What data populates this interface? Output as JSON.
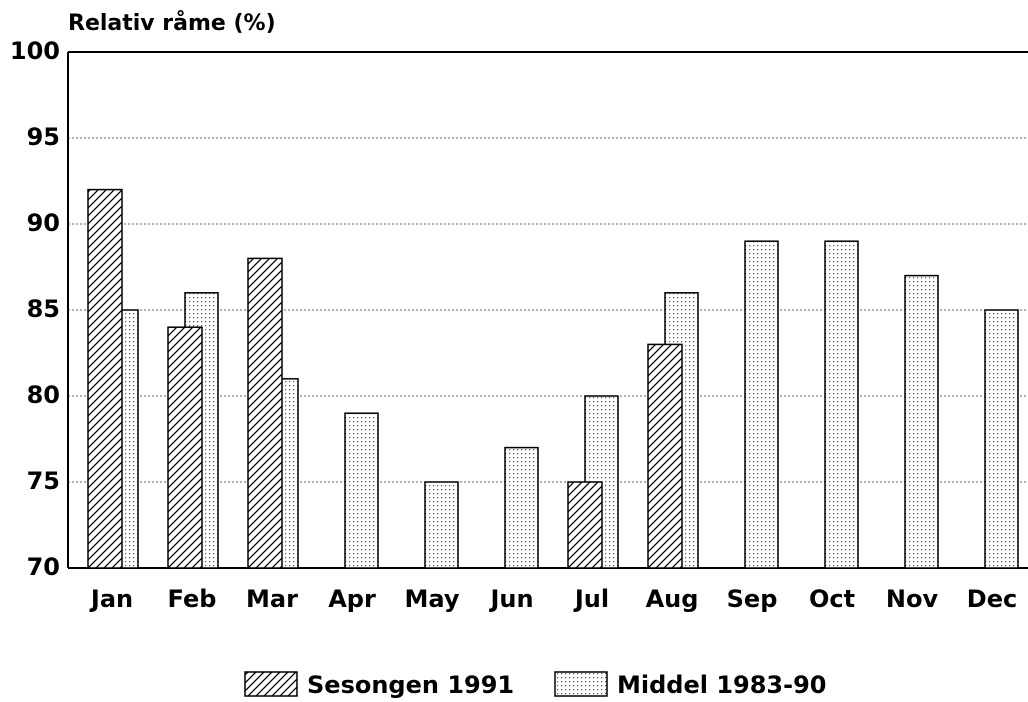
{
  "chart_data": {
    "type": "bar",
    "y_axis_label": "Relativ råme (%)",
    "categories": [
      "Jan",
      "Feb",
      "Mar",
      "Apr",
      "May",
      "Jun",
      "Jul",
      "Aug",
      "Sep",
      "Oct",
      "Nov",
      "Dec"
    ],
    "series": [
      {
        "name": "Sesongen 1991",
        "color": "#000000",
        "pattern": "hatch",
        "values": [
          92,
          84,
          88,
          null,
          null,
          null,
          75,
          83,
          null,
          null,
          null,
          null
        ]
      },
      {
        "name": "Middel 1983-90",
        "color": "#000000",
        "pattern": "dots",
        "values": [
          85,
          86,
          81,
          79,
          75,
          77,
          80,
          86,
          89,
          89,
          87,
          85
        ]
      }
    ],
    "ylim": [
      70,
      100
    ],
    "yticks": [
      70,
      75,
      80,
      85,
      90,
      95,
      100
    ],
    "grid": true,
    "legend": "bottom"
  }
}
